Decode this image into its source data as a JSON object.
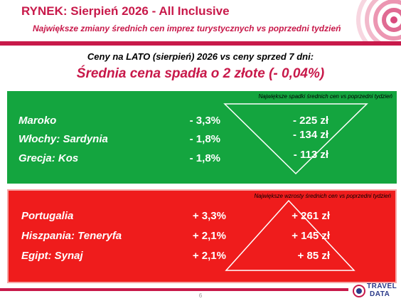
{
  "header": {
    "title": "RYNEK: Sierpień 2026 - All Inclusive",
    "subtitle": "Największe zmiany średnich cen imprez turystycznych vs poprzedni tydzień"
  },
  "intro": "Ceny na LATO (sierpień) 2026 vs ceny sprzed 7 dni:",
  "headline": "Średnia cena spadła o 2 złote (- 0,04%)",
  "decreases": {
    "caption": "Największe spadki średnich cen vs poprzedni tydzień",
    "rows": [
      {
        "name": "Maroko",
        "pct": "- 3,3%",
        "price": "- 225 zł"
      },
      {
        "name": "Włochy: Sardynia",
        "pct": "- 1,8%",
        "price": "- 134 zł"
      },
      {
        "name": "Grecja: Kos",
        "pct": "- 1,8%",
        "price": "- 113 zł"
      }
    ]
  },
  "increases": {
    "caption": "Największe wzrosty średnich cen vs poprzedni tydzień",
    "rows": [
      {
        "name": "Portugalia",
        "pct": "+ 3,3%",
        "price": "+ 261 zł"
      },
      {
        "name": "Hiszpania: Teneryfa",
        "pct": "+ 2,1%",
        "price": "+ 145 zł"
      },
      {
        "name": "Egipt: Synaj",
        "pct": "+ 2,1%",
        "price": "+ 85 zł"
      }
    ]
  },
  "footer": {
    "page_number": "6",
    "logo_top": "TRAVEL",
    "logo_bottom": "DATA"
  },
  "colors": {
    "brand": "#c8194a",
    "decrease_panel": "#14a53f",
    "increase_panel": "#ef1c1c",
    "logo": "#2b3a8a"
  }
}
